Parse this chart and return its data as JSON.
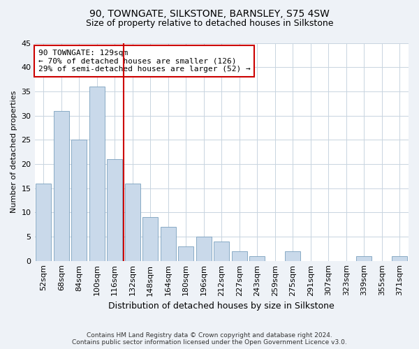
{
  "title": "90, TOWNGATE, SILKSTONE, BARNSLEY, S75 4SW",
  "subtitle": "Size of property relative to detached houses in Silkstone",
  "xlabel": "Distribution of detached houses by size in Silkstone",
  "ylabel": "Number of detached properties",
  "categories": [
    "52sqm",
    "68sqm",
    "84sqm",
    "100sqm",
    "116sqm",
    "132sqm",
    "148sqm",
    "164sqm",
    "180sqm",
    "196sqm",
    "212sqm",
    "227sqm",
    "243sqm",
    "259sqm",
    "275sqm",
    "291sqm",
    "307sqm",
    "323sqm",
    "339sqm",
    "355sqm",
    "371sqm"
  ],
  "values": [
    16,
    31,
    25,
    36,
    21,
    16,
    9,
    7,
    3,
    5,
    4,
    2,
    1,
    0,
    2,
    0,
    0,
    0,
    1,
    0,
    1
  ],
  "bar_color": "#c9d9ea",
  "bar_edge_color": "#7aa0be",
  "vline_x_index": 4.5,
  "vline_color": "#cc0000",
  "annotation_line1": "90 TOWNGATE: 129sqm",
  "annotation_line2": "← 70% of detached houses are smaller (126)",
  "annotation_line3": "29% of semi-detached houses are larger (52) →",
  "annotation_box_color": "#ffffff",
  "annotation_box_edge_color": "#cc0000",
  "ylim": [
    0,
    45
  ],
  "yticks": [
    0,
    5,
    10,
    15,
    20,
    25,
    30,
    35,
    40,
    45
  ],
  "footer_line1": "Contains HM Land Registry data © Crown copyright and database right 2024.",
  "footer_line2": "Contains public sector information licensed under the Open Government Licence v3.0.",
  "bg_color": "#eef2f7",
  "plot_bg_color": "#ffffff",
  "grid_color": "#c8d4e0",
  "title_fontsize": 10,
  "subtitle_fontsize": 9,
  "ylabel_fontsize": 8,
  "xlabel_fontsize": 9,
  "tick_fontsize": 8,
  "annotation_fontsize": 8,
  "footer_fontsize": 6.5
}
